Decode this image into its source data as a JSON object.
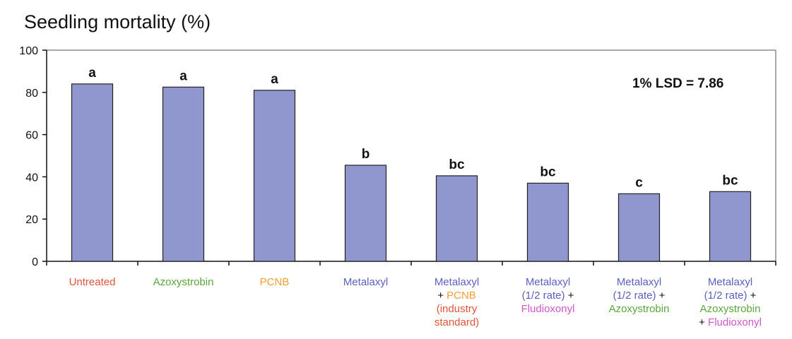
{
  "chart_data": {
    "type": "bar",
    "title": "Seedling mortality (%)",
    "xlabel": "",
    "ylabel": "",
    "ylim": [
      0,
      100
    ],
    "yticks": [
      0,
      20,
      40,
      60,
      80,
      100
    ],
    "grid": false,
    "bar_color": "#9097CF",
    "annotation": "1% LSD = 7.86",
    "categories": [
      {
        "lines": [
          [
            {
              "text": "Untreated",
              "color": "#E2543A"
            }
          ]
        ]
      },
      {
        "lines": [
          [
            {
              "text": "Azoxystrobin",
              "color": "#5BA63C"
            }
          ]
        ]
      },
      {
        "lines": [
          [
            {
              "text": "PCNB",
              "color": "#F0A030"
            }
          ]
        ]
      },
      {
        "lines": [
          [
            {
              "text": "Metalaxyl",
              "color": "#5A5FC0"
            }
          ]
        ]
      },
      {
        "lines": [
          [
            {
              "text": "Metalaxyl",
              "color": "#5A5FC0"
            }
          ],
          [
            {
              "text": "+ ",
              "color": "#111111"
            },
            {
              "text": "PCNB",
              "color": "#F0A030"
            }
          ],
          [
            {
              "text": "(industry",
              "color": "#E2543A"
            }
          ],
          [
            {
              "text": "standard)",
              "color": "#E2543A"
            }
          ]
        ]
      },
      {
        "lines": [
          [
            {
              "text": "Metalaxyl",
              "color": "#5A5FC0"
            }
          ],
          [
            {
              "text": "(1/2 rate)",
              "color": "#5A5FC0"
            },
            {
              "text": " +",
              "color": "#111111"
            }
          ],
          [
            {
              "text": "Fludioxonyl",
              "color": "#D255C8"
            }
          ]
        ]
      },
      {
        "lines": [
          [
            {
              "text": "Metalaxyl",
              "color": "#5A5FC0"
            }
          ],
          [
            {
              "text": "(1/2 rate)",
              "color": "#5A5FC0"
            },
            {
              "text": " +",
              "color": "#111111"
            }
          ],
          [
            {
              "text": "Azoxystrobin",
              "color": "#5BA63C"
            }
          ]
        ]
      },
      {
        "lines": [
          [
            {
              "text": "Metalaxyl",
              "color": "#5A5FC0"
            }
          ],
          [
            {
              "text": "(1/2 rate)",
              "color": "#5A5FC0"
            },
            {
              "text": " +",
              "color": "#111111"
            }
          ],
          [
            {
              "text": "Azoxystrobin",
              "color": "#5BA63C"
            }
          ],
          [
            {
              "text": "+ ",
              "color": "#111111"
            },
            {
              "text": "Fludioxonyl",
              "color": "#D255C8"
            }
          ]
        ]
      }
    ],
    "values": [
      84,
      82.5,
      81,
      45.5,
      40.5,
      37,
      32,
      33
    ],
    "significance_letters": [
      "a",
      "a",
      "a",
      "b",
      "bc",
      "bc",
      "c",
      "bc"
    ]
  }
}
